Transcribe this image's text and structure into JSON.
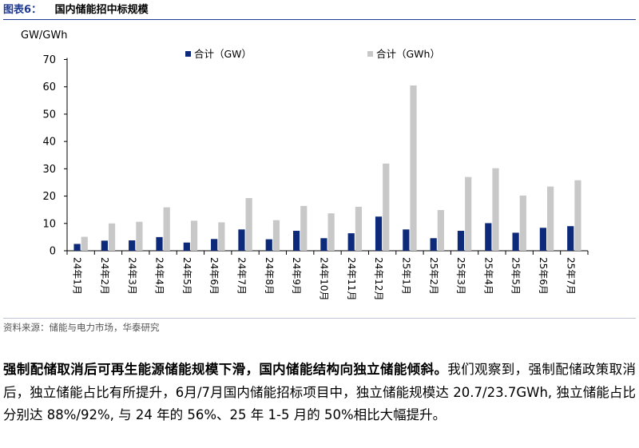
{
  "figure": {
    "number": "图表6：",
    "title": "国内储能招中标规模",
    "source": "资料来源：储能与电力市场，华泰研究"
  },
  "chart_data": {
    "type": "bar",
    "ylabel": "GW/GWh",
    "ylim": [
      0,
      70
    ],
    "yticks": [
      0,
      10,
      20,
      30,
      40,
      50,
      60,
      70
    ],
    "grid": false,
    "legend_position": "top",
    "categories": [
      "24年1月",
      "24年2月",
      "24年3月",
      "24年4月",
      "24年5月",
      "24年6月",
      "24年7月",
      "24年8月",
      "24年9月",
      "24年10月",
      "24年11月",
      "24年12月",
      "25年1月",
      "25年2月",
      "25年3月",
      "25年4月",
      "25年5月",
      "25年6月",
      "25年7月"
    ],
    "series": [
      {
        "name": "合计（GW）",
        "color": "#0d2a7a",
        "values": [
          2.5,
          3.7,
          3.8,
          5.0,
          3.0,
          4.3,
          7.8,
          4.2,
          7.3,
          4.6,
          6.4,
          12.5,
          7.8,
          4.6,
          7.3,
          10.1,
          6.6,
          8.4,
          9.0
        ]
      },
      {
        "name": "合计（GWh）",
        "color": "#c8c8c8",
        "values": [
          5.1,
          10.0,
          10.6,
          15.9,
          11.0,
          10.4,
          19.3,
          11.2,
          16.4,
          13.7,
          16.1,
          31.9,
          60.5,
          14.9,
          27.0,
          30.2,
          20.2,
          23.5,
          25.8
        ]
      }
    ]
  },
  "paragraph": {
    "bold": "强制配储取消后可再生能源储能规模下滑，国内储能结构向独立储能倾斜。",
    "text": "我们观察到，强制配储政策取消后，独立储能占比有所提升，6月/7月国内储能招标项目中，独立储能规模达 20.7/23.7GWh, 独立储能占比分别达 88%/92%, 与 24 年的 56%、25 年 1-5 月的 50%相比大幅提升。"
  }
}
